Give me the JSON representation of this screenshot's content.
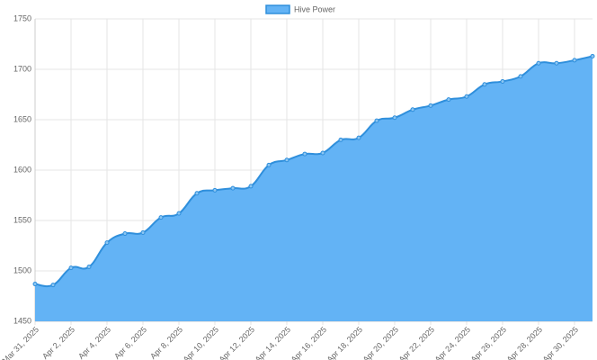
{
  "chart_data": {
    "type": "area",
    "series": [
      {
        "name": "Hive Power",
        "color": "#2f8fdc",
        "fill": "#63b3f5",
        "values": [
          1487,
          1486,
          1503,
          1504,
          1528,
          1537,
          1538,
          1553,
          1557,
          1577,
          1580,
          1582,
          1584,
          1605,
          1610,
          1616,
          1617,
          1630,
          1632,
          1649,
          1652,
          1660,
          1664,
          1670,
          1673,
          1685,
          1688,
          1693,
          1706,
          1706,
          1709,
          1713
        ]
      }
    ],
    "categories": [
      "Mar 31, 2025",
      null,
      "Apr 2, 2025",
      null,
      "Apr 4, 2025",
      null,
      "Apr 6, 2025",
      null,
      "Apr 8, 2025",
      null,
      "Apr 10, 2025",
      null,
      "Apr 12, 2025",
      null,
      "Apr 14, 2025",
      null,
      "Apr 16, 2025",
      null,
      "Apr 18, 2025",
      null,
      "Apr 20, 2025",
      null,
      "Apr 22, 2025",
      null,
      "Apr 24, 2025",
      null,
      "Apr 26, 2025",
      null,
      "Apr 28, 2025",
      null,
      "Apr 30, 2025",
      null
    ],
    "ylim": [
      1450,
      1750
    ],
    "yticks": [
      1450,
      1500,
      1550,
      1600,
      1650,
      1700,
      1750
    ],
    "grid": true,
    "legend": "top"
  }
}
